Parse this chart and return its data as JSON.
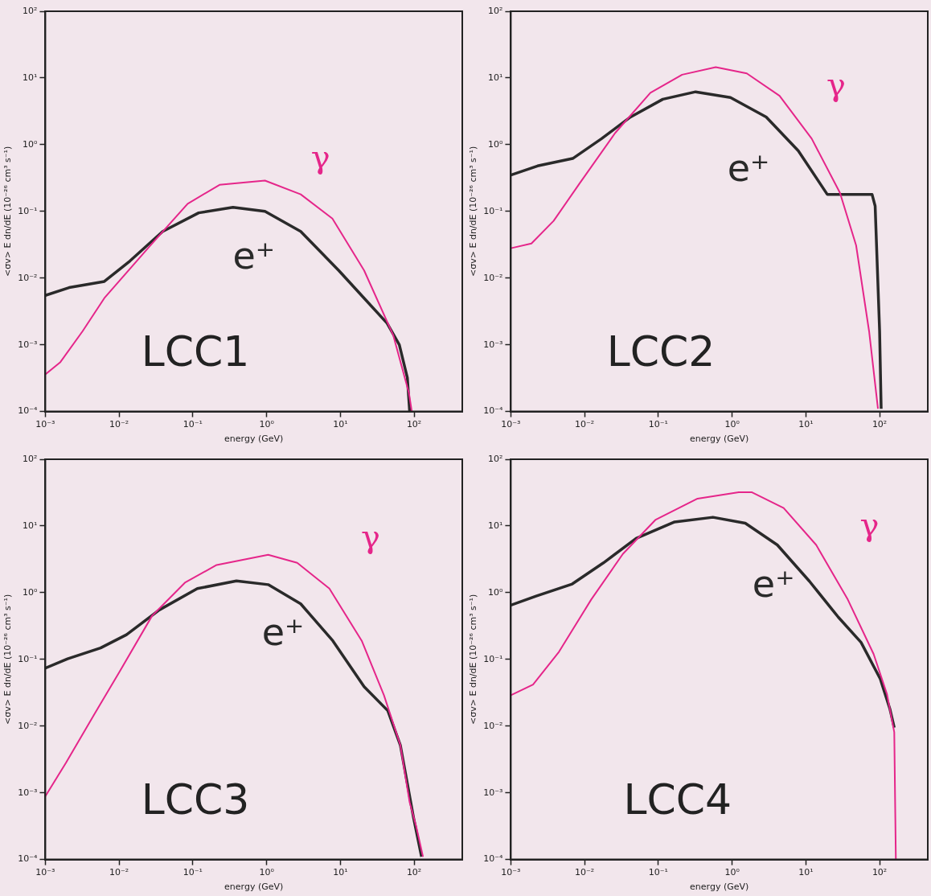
{
  "chart_data": [
    {
      "type": "line",
      "xlabel": "energy (GeV)",
      "ylabel": "<σv> E dn/dE (10⁻²⁶ cm³ s⁻¹)",
      "log": "xy",
      "grid": false,
      "legend": false,
      "annotations": [
        "LCC1"
      ],
      "xlim": [
        0.001,
        450
      ],
      "ylim": [
        0.0001,
        100
      ],
      "xticks": [
        {
          "value": 0.001,
          "label": "10⁻³"
        },
        {
          "value": 0.01,
          "label": "10⁻²"
        },
        {
          "value": 0.1,
          "label": "10⁻¹"
        },
        {
          "value": 1,
          "label": "10⁰"
        },
        {
          "value": 10,
          "label": "10¹"
        },
        {
          "value": 100,
          "label": "10²"
        }
      ],
      "yticks": [
        {
          "value": 0.0001,
          "label": "10⁻⁴"
        },
        {
          "value": 0.001,
          "label": "10⁻³"
        },
        {
          "value": 0.01,
          "label": "10⁻²"
        },
        {
          "value": 0.1,
          "label": "10⁻¹"
        },
        {
          "value": 1,
          "label": "10⁰"
        },
        {
          "value": 10,
          "label": "10¹"
        },
        {
          "value": 100,
          "label": "10²"
        }
      ],
      "series": [
        {
          "name": "γ",
          "color": "#e5268a",
          "x": [
            0.001,
            0.0016,
            0.0032,
            0.0063,
            0.026,
            0.085,
            0.23,
            0.95,
            2.9,
            7.8,
            21,
            52,
            85,
            93
          ],
          "values": [
            0.00036,
            0.00055,
            0.0016,
            0.005,
            0.03,
            0.13,
            0.25,
            0.29,
            0.18,
            0.078,
            0.013,
            0.0014,
            0.00019,
            0.0001
          ]
        },
        {
          "name": "e⁺",
          "color": "#2a2a2a",
          "x": [
            0.001,
            0.0021,
            0.0063,
            0.014,
            0.039,
            0.12,
            0.35,
            0.95,
            2.9,
            9.5,
            21,
            43,
            63,
            81,
            87
          ],
          "values": [
            0.0055,
            0.0072,
            0.0089,
            0.018,
            0.05,
            0.095,
            0.115,
            0.1,
            0.05,
            0.013,
            0.005,
            0.0021,
            0.001,
            0.00032,
            0.0001
          ]
        }
      ]
    },
    {
      "type": "line",
      "xlabel": "energy (GeV)",
      "ylabel": "<σv> E dn/dE (10⁻²⁶ cm³ s⁻¹)",
      "log": "xy",
      "grid": false,
      "legend": false,
      "annotations": [
        "LCC2"
      ],
      "xlim": [
        0.001,
        450
      ],
      "ylim": [
        0.0001,
        100
      ],
      "xticks": [
        {
          "value": 0.001,
          "label": "10⁻³"
        },
        {
          "value": 0.01,
          "label": "10⁻²"
        },
        {
          "value": 0.1,
          "label": "10⁻¹"
        },
        {
          "value": 1,
          "label": "10⁰"
        },
        {
          "value": 10,
          "label": "10¹"
        },
        {
          "value": 100,
          "label": "10²"
        }
      ],
      "yticks": [
        {
          "value": 0.0001,
          "label": "10⁻⁴"
        },
        {
          "value": 0.001,
          "label": "10⁻³"
        },
        {
          "value": 0.01,
          "label": "10⁻²"
        },
        {
          "value": 0.1,
          "label": "10⁻¹"
        },
        {
          "value": 1,
          "label": "10⁰"
        },
        {
          "value": 10,
          "label": "10¹"
        },
        {
          "value": 100,
          "label": "10²"
        }
      ],
      "series": [
        {
          "name": "γ",
          "color": "#e5268a",
          "x": [
            0.001,
            0.0019,
            0.0038,
            0.0085,
            0.026,
            0.078,
            0.21,
            0.6,
            1.58,
            4.4,
            12,
            29,
            48,
            72,
            95
          ],
          "values": [
            0.028,
            0.033,
            0.072,
            0.26,
            1.5,
            6,
            11.2,
            14.5,
            11.7,
            5.4,
            1.23,
            0.19,
            0.031,
            0.0016,
            0.00011
          ]
        },
        {
          "name": "e⁺",
          "color": "#2a2a2a",
          "x": [
            0.001,
            0.0023,
            0.0069,
            0.017,
            0.042,
            0.115,
            0.32,
            0.95,
            2.9,
            7.9,
            19.5,
            32,
            79,
            87,
            100,
            105
          ],
          "values": [
            0.35,
            0.48,
            0.62,
            1.23,
            2.6,
            4.8,
            6.2,
            5.1,
            2.6,
            0.81,
            0.18,
            0.18,
            0.18,
            0.12,
            0.0016,
            0.00011
          ]
        }
      ]
    },
    {
      "type": "line",
      "xlabel": "energy (GeV)",
      "ylabel": "<σv> E dn/dE (10⁻²⁶ cm³ s⁻¹)",
      "log": "xy",
      "grid": false,
      "legend": false,
      "annotations": [
        "LCC3"
      ],
      "xlim": [
        0.001,
        450
      ],
      "ylim": [
        0.0001,
        100
      ],
      "xticks": [
        {
          "value": 0.001,
          "label": "10⁻³"
        },
        {
          "value": 0.01,
          "label": "10⁻²"
        },
        {
          "value": 0.1,
          "label": "10⁻¹"
        },
        {
          "value": 1,
          "label": "10⁰"
        },
        {
          "value": 10,
          "label": "10¹"
        },
        {
          "value": 100,
          "label": "10²"
        }
      ],
      "yticks": [
        {
          "value": 0.0001,
          "label": "10⁻⁴"
        },
        {
          "value": 0.001,
          "label": "10⁻³"
        },
        {
          "value": 0.01,
          "label": "10⁻²"
        },
        {
          "value": 0.1,
          "label": "10⁻¹"
        },
        {
          "value": 1,
          "label": "10⁰"
        },
        {
          "value": 10,
          "label": "10¹"
        },
        {
          "value": 100,
          "label": "10²"
        }
      ],
      "series": [
        {
          "name": "γ",
          "color": "#e5268a",
          "x": [
            0.001,
            0.0019,
            0.0046,
            0.0102,
            0.028,
            0.078,
            0.21,
            1.05,
            2.6,
            7.1,
            19.5,
            39,
            65,
            87,
            107,
            132
          ],
          "values": [
            0.00089,
            0.0028,
            0.015,
            0.066,
            0.45,
            1.41,
            2.6,
            3.7,
            2.8,
            1.15,
            0.19,
            0.029,
            0.0052,
            0.00072,
            0.00031,
            0.00011
          ]
        },
        {
          "name": "e⁺",
          "color": "#2a2a2a",
          "x": [
            0.001,
            0.002,
            0.0056,
            0.0126,
            0.035,
            0.115,
            0.39,
            1.05,
            2.9,
            7.9,
            21,
            44,
            65,
            98,
            126
          ],
          "values": [
            0.074,
            0.102,
            0.148,
            0.234,
            0.55,
            1.15,
            1.5,
            1.32,
            0.68,
            0.19,
            0.039,
            0.017,
            0.0052,
            0.00043,
            0.00011
          ]
        }
      ]
    },
    {
      "type": "line",
      "xlabel": "energy (GeV)",
      "ylabel": "<σv> E dn/dE (10⁻²⁶ cm³ s⁻¹)",
      "log": "xy",
      "grid": false,
      "legend": false,
      "annotations": [
        "LCC4"
      ],
      "xlim": [
        0.001,
        450
      ],
      "ylim": [
        0.0001,
        100
      ],
      "xticks": [
        {
          "value": 0.001,
          "label": "10⁻³"
        },
        {
          "value": 0.01,
          "label": "10⁻²"
        },
        {
          "value": 0.1,
          "label": "10⁻¹"
        },
        {
          "value": 1,
          "label": "10⁰"
        },
        {
          "value": 10,
          "label": "10¹"
        },
        {
          "value": 100,
          "label": "10²"
        }
      ],
      "yticks": [
        {
          "value": 0.0001,
          "label": "10⁻⁴"
        },
        {
          "value": 0.001,
          "label": "10⁻³"
        },
        {
          "value": 0.01,
          "label": "10⁻²"
        },
        {
          "value": 0.1,
          "label": "10⁻¹"
        },
        {
          "value": 1,
          "label": "10⁰"
        },
        {
          "value": 10,
          "label": "10¹"
        },
        {
          "value": 100,
          "label": "10²"
        }
      ],
      "series": [
        {
          "name": "γ",
          "color": "#e5268a",
          "x": [
            0.001,
            0.002,
            0.0045,
            0.0123,
            0.033,
            0.091,
            0.34,
            1.23,
            1.86,
            5,
            13.8,
            37,
            83,
            126,
            158,
            166
          ],
          "values": [
            0.029,
            0.042,
            0.13,
            0.79,
            3.8,
            12.3,
            25.7,
            32,
            32,
            18.6,
            5.2,
            0.79,
            0.12,
            0.03,
            0.0081,
            0.0001
          ]
        },
        {
          "name": "e⁺",
          "color": "#2a2a2a",
          "x": [
            0.001,
            0.0022,
            0.0068,
            0.018,
            0.05,
            0.166,
            0.55,
            1.51,
            4.1,
            11.2,
            27.5,
            56,
            102,
            138,
            158
          ],
          "values": [
            0.65,
            0.89,
            1.35,
            2.8,
            6.5,
            11.5,
            13.5,
            11,
            5.2,
            1.48,
            0.43,
            0.18,
            0.051,
            0.018,
            0.0095
          ]
        }
      ]
    }
  ]
}
